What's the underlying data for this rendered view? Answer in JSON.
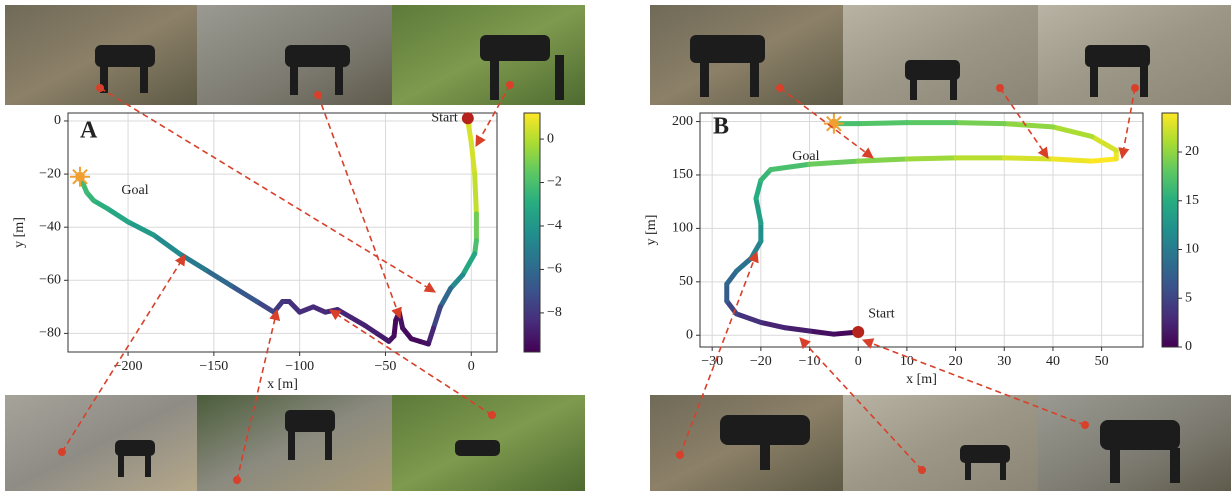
{
  "chart_data": [
    {
      "type": "line",
      "panel_label": "A",
      "xlabel": "x [m]",
      "ylabel": "y [m]",
      "colormap": "viridis",
      "grid": true,
      "xlim": [
        -235,
        15
      ],
      "ylim": [
        -87,
        3
      ],
      "clim": [
        -9.8,
        1.2
      ],
      "xticks": [
        {
          "value": -200,
          "label": "−200"
        },
        {
          "value": -150,
          "label": "−150"
        },
        {
          "value": -100,
          "label": "−100"
        },
        {
          "value": -50,
          "label": "−50"
        },
        0
      ],
      "yticks": [
        0,
        {
          "value": -20,
          "label": "−20"
        },
        {
          "value": -40,
          "label": "−40"
        },
        {
          "value": -60,
          "label": "−60"
        },
        {
          "value": -80,
          "label": "−80"
        }
      ],
      "cticks": [
        0,
        {
          "value": -2,
          "label": "−2"
        },
        {
          "value": -4,
          "label": "−4"
        },
        {
          "value": -6,
          "label": "−6"
        },
        {
          "value": -8,
          "label": "−8"
        }
      ],
      "x": [
        -2,
        0,
        2,
        3,
        3,
        2,
        -5,
        -12,
        -18,
        -22,
        -25,
        -30,
        -35,
        -40,
        -42,
        -44,
        -45,
        -48,
        -55,
        -62,
        -70,
        -78,
        -85,
        -92,
        -100,
        -106,
        -110,
        -115,
        -125,
        -140,
        -155,
        -170,
        -185,
        -200,
        -212,
        -220,
        -224,
        -226,
        -228
      ],
      "values": [
        0,
        -8,
        -20,
        -35,
        -45,
        -50,
        -58,
        -63,
        -70,
        -78,
        -84,
        -83,
        -82,
        -78,
        -72,
        -75,
        -81,
        -83,
        -80,
        -77,
        -74,
        -71,
        -72,
        -70,
        -72,
        -68,
        -68,
        -72,
        -68,
        -62,
        -56,
        -50,
        -43,
        -38,
        -33,
        -30,
        -27,
        -24,
        -21
      ],
      "color_values": [
        0.5,
        0.6,
        0.5,
        0.2,
        -1.2,
        -2,
        -3.2,
        -4.5,
        -6,
        -7.5,
        -8.6,
        -9.3,
        -9.5,
        -9.5,
        -9.3,
        -9.2,
        -9.5,
        -9.4,
        -9.0,
        -8.8,
        -8.7,
        -8.6,
        -8.6,
        -8.5,
        -8.4,
        -8.3,
        -8.2,
        -8.0,
        -7.5,
        -6.8,
        -6.0,
        -5.3,
        -4.5,
        -3.8,
        -3.2,
        -2.8,
        -2.5,
        -2.3,
        -2.2
      ],
      "start": {
        "label": "Start",
        "x": -2,
        "y": 1
      },
      "goal": {
        "label": "Goal",
        "x": -228,
        "y": -21
      }
    },
    {
      "type": "line",
      "panel_label": "B",
      "xlabel": "x [m]",
      "ylabel": "y [m]",
      "colormap": "viridis",
      "grid": true,
      "xlim": [
        -32.5,
        58.5
      ],
      "ylim": [
        -11,
        208
      ],
      "clim": [
        0,
        24
      ],
      "xticks": [
        {
          "value": -30,
          "label": "−30"
        },
        {
          "value": -20,
          "label": "−20"
        },
        {
          "value": -10,
          "label": "−10"
        },
        0,
        10,
        20,
        30,
        40,
        50
      ],
      "yticks": [
        0,
        50,
        100,
        150,
        200
      ],
      "cticks": [
        0,
        5,
        10,
        15,
        20
      ],
      "x": [
        0,
        -5,
        -10,
        -15,
        -20,
        -25,
        -27,
        -27,
        -25,
        -22,
        -20,
        -20,
        -21,
        -20,
        -18,
        -10,
        0,
        10,
        20,
        30,
        40,
        48,
        53,
        53,
        48,
        40,
        30,
        20,
        10,
        0,
        -5
      ],
      "values": [
        3,
        1,
        4,
        7,
        12,
        20,
        32,
        48,
        60,
        72,
        88,
        105,
        128,
        145,
        155,
        160,
        163,
        165,
        166,
        166,
        165,
        163,
        165,
        173,
        186,
        195,
        198,
        199,
        199,
        198,
        198
      ],
      "color_values": [
        0,
        0.5,
        1,
        2,
        2.5,
        3.5,
        5,
        7,
        8,
        9,
        10.5,
        12,
        13.5,
        15,
        16,
        17,
        18.5,
        19.5,
        20.5,
        21.5,
        22.5,
        23.5,
        24,
        23.5,
        22.5,
        21,
        20,
        19,
        18,
        17.5,
        17
      ],
      "start": {
        "label": "Start",
        "x": 0,
        "y": 3
      },
      "goal": {
        "label": "Goal",
        "x": -5,
        "y": 198
      }
    }
  ]
}
